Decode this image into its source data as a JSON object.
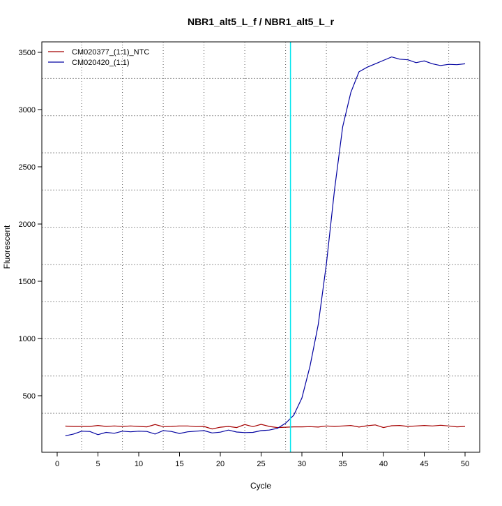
{
  "chart_data": {
    "type": "line",
    "title": "NBR1_alt5_L_f / NBR1_alt5_L_r",
    "xlabel": "Cycle",
    "ylabel": "Fluorescent",
    "xlim": [
      -2.0,
      52.0
    ],
    "ylim": [
      0,
      3600
    ],
    "xticks": [
      0,
      5,
      10,
      15,
      20,
      25,
      30,
      35,
      40,
      45,
      50
    ],
    "yticks": [
      500,
      1000,
      1500,
      2000,
      2500,
      3000,
      3500
    ],
    "grid": true,
    "vertical_grid_cycles": [
      3,
      8,
      13,
      18,
      23,
      28,
      33,
      38,
      43,
      48
    ],
    "horizontal_grid_values": [
      347,
      672,
      997,
      1322,
      1647,
      1972,
      2297,
      2622,
      2947,
      3272
    ],
    "threshold_cycle": 28.6,
    "threshold_color": "#00e5ee",
    "legend_position": "top-left",
    "x": [
      1,
      2,
      3,
      4,
      5,
      6,
      7,
      8,
      9,
      10,
      11,
      12,
      13,
      14,
      15,
      16,
      17,
      18,
      19,
      20,
      21,
      22,
      23,
      24,
      25,
      26,
      27,
      28,
      29,
      30,
      31,
      32,
      33,
      34,
      35,
      36,
      37,
      38,
      39,
      40,
      41,
      42,
      43,
      44,
      45,
      46,
      47,
      48,
      49,
      50
    ],
    "series": [
      {
        "name": "CM020377_(1:1)_NTC",
        "color": "#a50000",
        "values": [
          235,
          232,
          232,
          232,
          240,
          232,
          236,
          232,
          236,
          232,
          228,
          248,
          230,
          232,
          236,
          236,
          230,
          232,
          210,
          225,
          232,
          222,
          248,
          230,
          250,
          232,
          222,
          225,
          228,
          228,
          230,
          226,
          236,
          232,
          236,
          240,
          226,
          238,
          245,
          222,
          238,
          240,
          232,
          236,
          240,
          236,
          242,
          236,
          228,
          232
        ]
      },
      {
        "name": "CM020420_(1:1)",
        "color": "#0000a0",
        "values": [
          150,
          165,
          190,
          188,
          160,
          180,
          172,
          190,
          185,
          190,
          188,
          165,
          195,
          188,
          170,
          185,
          190,
          195,
          175,
          182,
          200,
          183,
          178,
          180,
          195,
          200,
          215,
          260,
          330,
          480,
          760,
          1120,
          1650,
          2300,
          2850,
          3150,
          3330,
          3370,
          3400,
          3430,
          3460,
          3440,
          3435,
          3410,
          3425,
          3400,
          3385,
          3395,
          3392,
          3400
        ]
      }
    ]
  }
}
